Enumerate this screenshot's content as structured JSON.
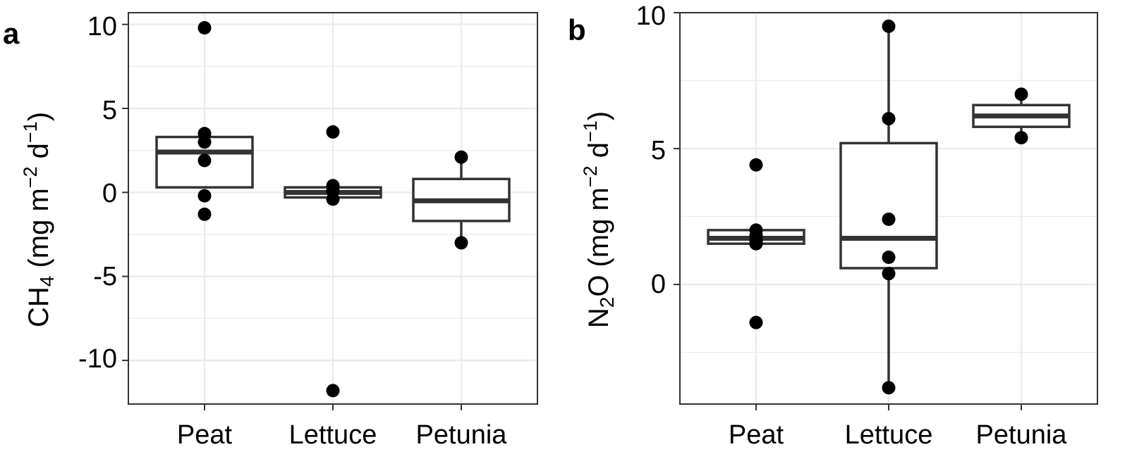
{
  "chart_data": [
    {
      "type": "box",
      "panel_label": "a",
      "ylabel": {
        "pre": "CH",
        "sub": "4",
        "mid": " (mg  m",
        "sup1": "−2",
        "mid2": " d",
        "sup2": "−1",
        "post": ")"
      },
      "categories": [
        "Peat",
        "Lettuce",
        "Petunia"
      ],
      "ylim": [
        -12.6,
        10.7
      ],
      "yticks": [
        10,
        5,
        0,
        -5,
        -10
      ],
      "ytick_labels": [
        "10",
        "5",
        "0",
        "-5",
        "-10"
      ],
      "grid": true,
      "boxes": [
        {
          "category": "Peat",
          "q1": 0.3,
          "median": 2.4,
          "q3": 3.3,
          "whisker_low": 0.3,
          "whisker_high": 3.3
        },
        {
          "category": "Lettuce",
          "q1": -0.3,
          "median": 0.0,
          "q3": 0.3,
          "whisker_low": -0.3,
          "whisker_high": 0.3
        },
        {
          "category": "Petunia",
          "q1": -1.7,
          "median": -0.5,
          "q3": 0.8,
          "whisker_low": -3.0,
          "whisker_high": 2.1
        }
      ],
      "points": [
        {
          "category": "Peat",
          "values": [
            9.8,
            3.5,
            3.0,
            1.9,
            -0.2,
            -1.3
          ]
        },
        {
          "category": "Lettuce",
          "values": [
            3.6,
            0.4,
            0.1,
            -0.4,
            -11.8
          ]
        },
        {
          "category": "Petunia",
          "values": [
            2.1,
            -3.0
          ]
        }
      ]
    },
    {
      "type": "box",
      "panel_label": "b",
      "ylabel": {
        "pre": "N",
        "sub": "2",
        "mid": "O (mg  m",
        "sup1": "−2",
        "mid2": " d",
        "sup2": "−1",
        "post": ")"
      },
      "categories": [
        "Peat",
        "Lettuce",
        "Petunia"
      ],
      "ylim": [
        -4.4,
        10.0
      ],
      "yticks": [
        10,
        5,
        0
      ],
      "ytick_labels": [
        "10",
        "5",
        "0"
      ],
      "grid": true,
      "boxes": [
        {
          "category": "Peat",
          "q1": 1.5,
          "median": 1.7,
          "q3": 2.0,
          "whisker_low": 1.5,
          "whisker_high": 2.0
        },
        {
          "category": "Lettuce",
          "q1": 0.6,
          "median": 1.7,
          "q3": 5.2,
          "whisker_low": -3.8,
          "whisker_high": 9.5
        },
        {
          "category": "Petunia",
          "q1": 5.8,
          "median": 6.2,
          "q3": 6.6,
          "whisker_low": 5.4,
          "whisker_high": 7.0
        }
      ],
      "points": [
        {
          "category": "Peat",
          "values": [
            4.4,
            2.0,
            1.8,
            1.6,
            1.5,
            -1.4
          ]
        },
        {
          "category": "Lettuce",
          "values": [
            9.5,
            6.1,
            2.4,
            1.0,
            0.4,
            -3.8
          ]
        },
        {
          "category": "Petunia",
          "values": [
            7.0,
            5.4
          ]
        }
      ]
    }
  ],
  "colors": {
    "box_stroke": "#333333",
    "point": "#000000",
    "grid": "#ebebeb",
    "panel_border": "#333333",
    "background": "#ffffff"
  }
}
